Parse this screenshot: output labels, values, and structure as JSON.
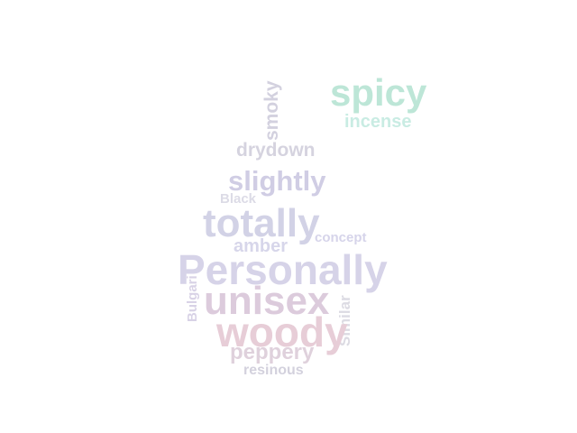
{
  "words": [
    {
      "id": "spicy",
      "text": "spicy",
      "color": "#bde6d7"
    },
    {
      "id": "incense",
      "text": "incense",
      "color": "#c9ece3"
    },
    {
      "id": "smoky",
      "text": "smoky",
      "color": "#d3d1df"
    },
    {
      "id": "drydown",
      "text": "drydown",
      "color": "#d5d3df"
    },
    {
      "id": "slightly",
      "text": "slightly",
      "color": "#d0cde4"
    },
    {
      "id": "black",
      "text": "Black",
      "color": "#dcdbe6"
    },
    {
      "id": "totally",
      "text": "totally",
      "color": "#d2d2e6"
    },
    {
      "id": "concept",
      "text": "concept",
      "color": "#d6d4ea"
    },
    {
      "id": "amber",
      "text": "amber",
      "color": "#d7d6ea"
    },
    {
      "id": "personally",
      "text": "Personally",
      "color": "#d6d3e8"
    },
    {
      "id": "unisex",
      "text": "unisex",
      "color": "#dccbdc"
    },
    {
      "id": "bulgari",
      "text": "Bulgari",
      "color": "#d8d2e6"
    },
    {
      "id": "similar",
      "text": "Similar",
      "color": "#dcdbe3"
    },
    {
      "id": "woody",
      "text": "woody",
      "color": "#e7cdd7"
    },
    {
      "id": "peppery",
      "text": "peppery",
      "color": "#dfd1dc"
    },
    {
      "id": "resinous",
      "text": "resinous",
      "color": "#d3d1dd"
    }
  ]
}
